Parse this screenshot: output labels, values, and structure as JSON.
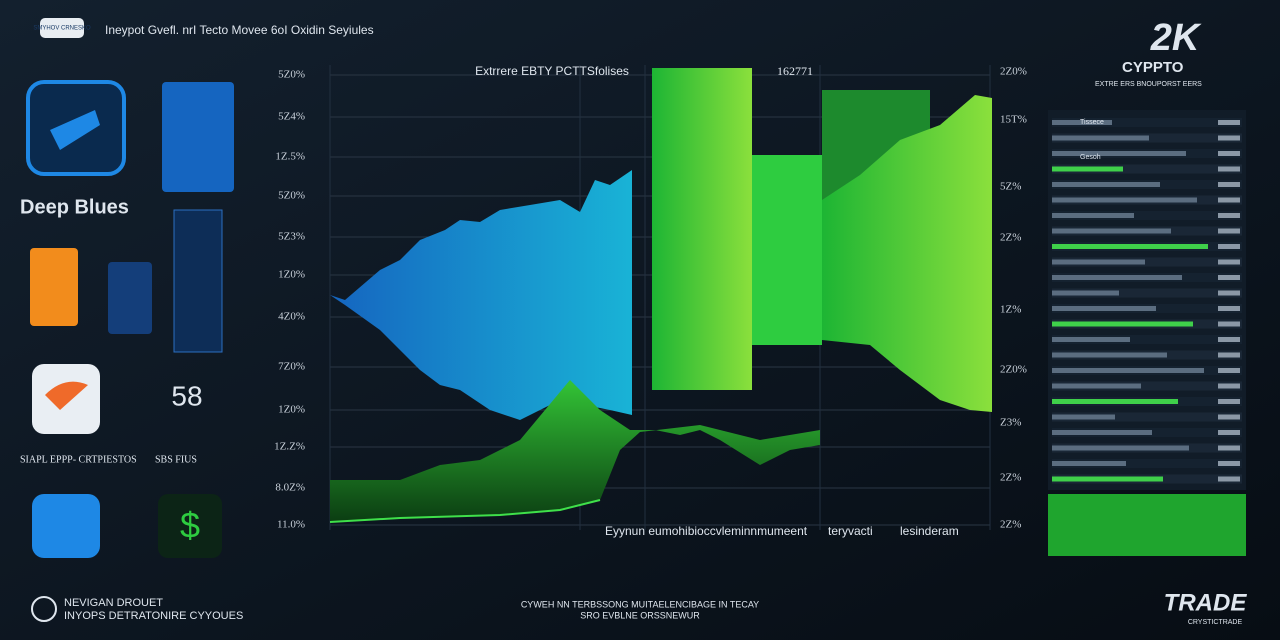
{
  "header": {
    "badge": "SMYHOV CRNESKO",
    "title": "Ineypot Gvefl. nrI Tecto Movee 6oI Oxidin Seyiules"
  },
  "left_panel": {
    "brand": "Deep Blues",
    "number": "58",
    "label_a": "SIAPL EPPP- CRTPIESTOS",
    "label_b": "SBS FIUS",
    "footer_line1": "NEVIGAN DROUET",
    "footer_line2": "INYOPS DETRATONIRE CYYOUES"
  },
  "center": {
    "title": "Extrrere EBTY PCTTSfolises",
    "code": "162771",
    "left_axis": [
      "5Z0%",
      "5Z4%",
      "1Z.5%",
      "5Z0%",
      "5Z3%",
      "1Z0%",
      "4Z0%",
      "7Z0%",
      "1Z0%",
      "1Z.Z%",
      "8.0Z%",
      "11.0%"
    ],
    "right_axis": [
      "2Z0%",
      "15T%",
      "5Z%",
      "2Z%",
      "1Z%",
      "2Z0%",
      "Z3%",
      "2Z%",
      "2Z%"
    ],
    "bottom_labels": [
      "Eyynun eumohibioccvleminnmumeent",
      "teryvacti",
      "lesinderam"
    ],
    "footer_line1": "CYWEH NN TERBSSONG MUITAELENCIBAGE IN TECAY",
    "footer_line2": "SRO EVBLNE ORSSNEWUR"
  },
  "right_panel": {
    "logo": "2K",
    "name": "CYPPTO",
    "tagline": "EXTRE ERS BNOUPORST EERS",
    "list": [
      "Tissece",
      "Gesoh"
    ],
    "footer_logo": "TRADE",
    "footer_sub": "CRYSTICTRADE"
  }
}
